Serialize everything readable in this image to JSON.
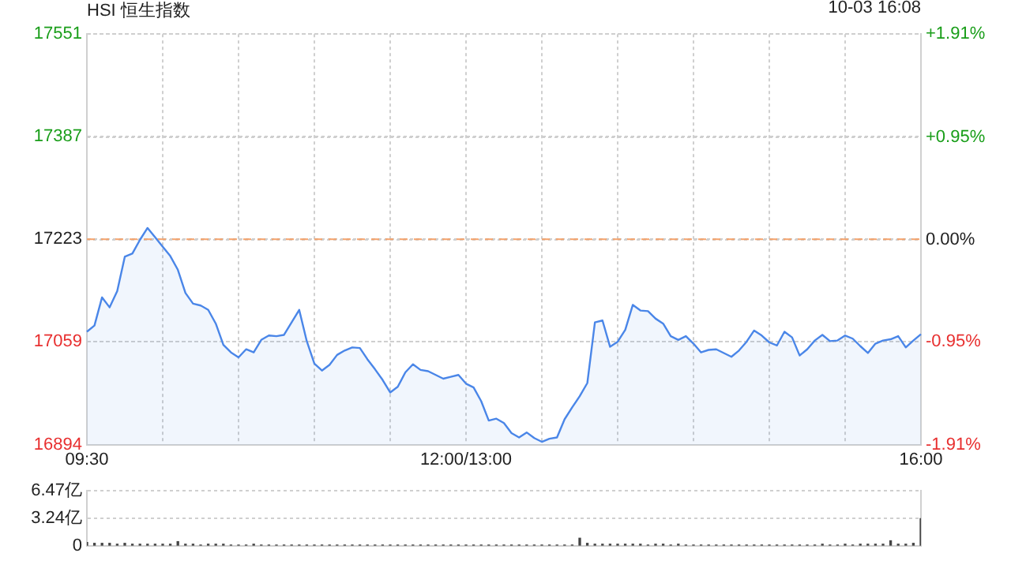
{
  "chart_data": [
    {
      "type": "area",
      "title": "HSI 恒生指数",
      "annotations": [
        "10-03 16:08"
      ],
      "color": "#4a86e8",
      "categories": [
        "09:30",
        null,
        null,
        null,
        null,
        null,
        null,
        null,
        null,
        null,
        null,
        null,
        null,
        null,
        null,
        null,
        null,
        null,
        null,
        null,
        null,
        null,
        null,
        null,
        null,
        null,
        null,
        null,
        null,
        null,
        null,
        null,
        null,
        null,
        null,
        null,
        null,
        null,
        null,
        null,
        null,
        null,
        null,
        null,
        null,
        null,
        null,
        null,
        null,
        null,
        "12:00/13:00",
        null,
        null,
        null,
        null,
        null,
        null,
        null,
        null,
        null,
        null,
        null,
        null,
        null,
        null,
        null,
        null,
        null,
        null,
        null,
        null,
        null,
        null,
        null,
        null,
        null,
        null,
        null,
        null,
        null,
        null,
        null,
        null,
        null,
        null,
        null,
        null,
        null,
        null,
        null,
        null,
        null,
        null,
        null,
        null,
        null,
        null,
        null,
        null,
        null,
        null,
        null,
        null,
        null,
        null,
        null,
        null,
        null,
        null,
        null,
        "16:00"
      ],
      "values": [
        17075,
        17085,
        17130,
        17114,
        17140,
        17195,
        17200,
        17222,
        17241,
        17226,
        17211,
        17196,
        17174,
        17137,
        17120,
        17117,
        17110,
        17088,
        17054,
        17042,
        17034,
        17047,
        17042,
        17062,
        17069,
        17068,
        17070,
        17090,
        17110,
        17060,
        17024,
        17013,
        17022,
        17038,
        17045,
        17050,
        17049,
        17031,
        17015,
        16998,
        16978,
        16987,
        17010,
        17023,
        17014,
        17012,
        17006,
        17000,
        17003,
        17006,
        16992,
        16986,
        16964,
        16933,
        16936,
        16929,
        16913,
        16906,
        16914,
        16905,
        16899,
        16904,
        16906,
        16935,
        16954,
        16972,
        16993,
        17090,
        17093,
        17051,
        17059,
        17078,
        17118,
        17109,
        17108,
        17096,
        17088,
        17068,
        17062,
        17068,
        17056,
        17042,
        17046,
        17047,
        17041,
        17035,
        17045,
        17059,
        17077,
        17069,
        17058,
        17053,
        17075,
        17066,
        17037,
        17047,
        17061,
        17070,
        17060,
        17061,
        17069,
        17064,
        17052,
        17041,
        17056,
        17061,
        17063,
        17068,
        17050,
        17061,
        17071
      ],
      "ylim": [
        16894,
        17551
      ],
      "yticks": [
        16894,
        17059,
        17223,
        17387,
        17551
      ],
      "y2lim": [
        -1.91,
        1.91
      ],
      "y2ticks": [
        {
          "value": -1.91,
          "label": "-1.91%"
        },
        {
          "value": -0.95,
          "label": "-0.95%"
        },
        {
          "value": 0,
          "label": "0.00%"
        },
        {
          "value": 0.95,
          "label": "+0.95%"
        },
        {
          "value": 1.91,
          "label": "+1.91%"
        }
      ],
      "ref_lines": [
        {
          "axis": "y",
          "value": 17223,
          "color": "#f5a26b",
          "line_style": "dashed"
        }
      ],
      "grid": true,
      "legend": false
    },
    {
      "type": "bar",
      "color": "#444444",
      "tick_labels": "y",
      "grid": "y",
      "legend": false,
      "categories": [
        null,
        null,
        null,
        null,
        null,
        null,
        null,
        null,
        null,
        null,
        null,
        null,
        null,
        null,
        null,
        null,
        null,
        null,
        null,
        null,
        null,
        null,
        null,
        null,
        null,
        null,
        null,
        null,
        null,
        null,
        null,
        null,
        null,
        null,
        null,
        null,
        null,
        null,
        null,
        null,
        null,
        null,
        null,
        null,
        null,
        null,
        null,
        null,
        null,
        null,
        null,
        null,
        null,
        null,
        null,
        null,
        null,
        null,
        null,
        null,
        null,
        null,
        null,
        null,
        null,
        null,
        null,
        null,
        null,
        null,
        null,
        null,
        null,
        null,
        null,
        null,
        null,
        null,
        null,
        null,
        null,
        null,
        null,
        null,
        null,
        null,
        null,
        null,
        null,
        null,
        null,
        null,
        null,
        null,
        null,
        null,
        null,
        null,
        null,
        null,
        null,
        null,
        null,
        null,
        null,
        null,
        null,
        null,
        null,
        null,
        null
      ],
      "values": [
        0.4,
        0.3,
        0.3,
        0.3,
        0.2,
        0.3,
        0.2,
        0.2,
        0.2,
        0.2,
        0.2,
        0.2,
        0.5,
        0.2,
        0.2,
        0.1,
        0.2,
        0.2,
        0.2,
        0.1,
        0.1,
        0.1,
        0.2,
        0.1,
        0.1,
        0.1,
        0.1,
        0.1,
        0.1,
        0.1,
        0.1,
        0.1,
        0.1,
        0.1,
        0.1,
        0.1,
        0.1,
        0.1,
        0.1,
        0.1,
        0.1,
        0.1,
        0.1,
        0.1,
        0.1,
        0.1,
        0.1,
        0.1,
        0.1,
        0.1,
        0.1,
        0.1,
        0.1,
        0.1,
        0.1,
        0.1,
        0.1,
        0.1,
        0.1,
        0.1,
        0.1,
        0.1,
        0.1,
        0.1,
        0.1,
        0.9,
        0.3,
        0.2,
        0.2,
        0.2,
        0.2,
        0.2,
        0.2,
        0.2,
        0.1,
        0.2,
        0.2,
        0.1,
        0.2,
        0.1,
        0.1,
        0.1,
        0.1,
        0.1,
        0.1,
        0.1,
        0.1,
        0.1,
        0.1,
        0.1,
        0.1,
        0.1,
        0.1,
        0.1,
        0.1,
        0.1,
        0.1,
        0.2,
        0.1,
        0.1,
        0.2,
        0.1,
        0.2,
        0.2,
        0.2,
        0.2,
        0.6,
        0.2,
        0.2,
        0.3,
        3.2
      ],
      "ylim": [
        0,
        6.47
      ],
      "yticks": [
        0,
        {
          "value": 3.24,
          "label": "3.24亿"
        },
        {
          "value": 6.47,
          "label": "6.47亿"
        }
      ]
    }
  ]
}
